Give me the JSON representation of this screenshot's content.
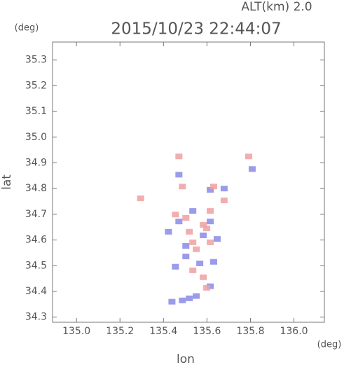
{
  "chart_data": {
    "type": "scatter",
    "title": "2015/10/23 22:44:07",
    "subtitle": "ALT(km)  2.0",
    "x_label": "lon",
    "x_unit": "(deg)",
    "y_label": "lat",
    "y_unit": "(deg)",
    "xlim": [
      134.89,
      136.14
    ],
    "ylim": [
      34.28,
      35.37
    ],
    "xticks": [
      {
        "value": 135,
        "label": "135.0"
      },
      135.2,
      135.4,
      135.6,
      135.8,
      {
        "value": 136,
        "label": "136.0"
      }
    ],
    "yticks": [
      34.3,
      34.4,
      34.5,
      34.6,
      34.7,
      34.8,
      34.9,
      {
        "value": 35,
        "label": "35.0"
      },
      35.1,
      35.2,
      35.3
    ],
    "series": [
      {
        "color": "#8a8ae8",
        "x": [
          135.519,
          135.551,
          135.487,
          135.439,
          135.615,
          135.567,
          135.455,
          135.631,
          135.503,
          135.423,
          135.471,
          135.615,
          135.647,
          135.503,
          135.679,
          135.615,
          135.808,
          135.471,
          135.535,
          135.583
        ],
        "values": [
          34.373,
          34.382,
          34.365,
          34.36,
          34.42,
          34.509,
          34.496,
          34.515,
          34.577,
          34.632,
          34.672,
          34.672,
          34.604,
          34.536,
          34.8,
          34.795,
          34.876,
          34.854,
          34.713,
          34.618
        ]
      },
      {
        "color": "#f0a0a0",
        "x": [
          135.599,
          135.583,
          135.535,
          135.551,
          135.615,
          135.519,
          135.583,
          135.503,
          135.455,
          135.615,
          135.487,
          135.631,
          135.679,
          135.295,
          135.792,
          135.471,
          135.535,
          135.599
        ],
        "values": [
          34.414,
          34.455,
          34.482,
          34.564,
          34.591,
          34.632,
          34.659,
          34.686,
          34.699,
          34.713,
          34.808,
          34.808,
          34.754,
          34.762,
          34.925,
          34.925,
          34.591,
          34.645
        ]
      }
    ]
  }
}
